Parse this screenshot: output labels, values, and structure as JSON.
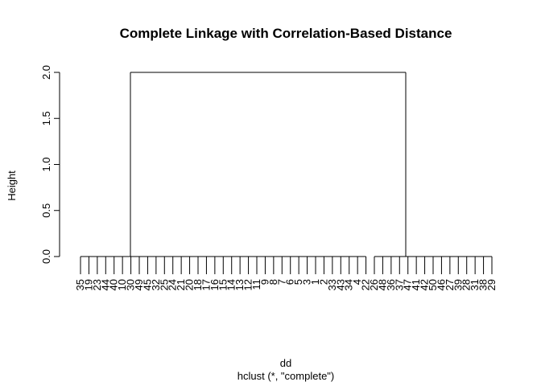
{
  "chart_data": {
    "type": "dendrogram",
    "title": "Complete Linkage with Correlation-Based Distance",
    "xlabel": "dd",
    "sub": "hclust (*, \"complete\")",
    "ylabel": "Height",
    "ylim": [
      0,
      2.0
    ],
    "yticks": [
      "0.0",
      "0.5",
      "1.0",
      "1.5",
      "2.0"
    ],
    "grid": false,
    "clusters": [
      {
        "leaves": [
          "35",
          "19",
          "23",
          "44",
          "40",
          "10",
          "30",
          "49",
          "45",
          "32",
          "25",
          "24",
          "21",
          "20",
          "18",
          "17",
          "16",
          "15",
          "14",
          "13",
          "12",
          "11",
          "9",
          "8",
          "7",
          "6",
          "5",
          "3",
          "1",
          "2",
          "33",
          "43",
          "34",
          "4",
          "22"
        ],
        "merge_height": 0.0
      },
      {
        "leaves": [
          "26",
          "48",
          "36",
          "37",
          "47",
          "41",
          "42",
          "50",
          "46",
          "27",
          "39",
          "28",
          "31",
          "38",
          "29"
        ],
        "merge_height": 0.0
      }
    ],
    "root_height": 2.0
  }
}
